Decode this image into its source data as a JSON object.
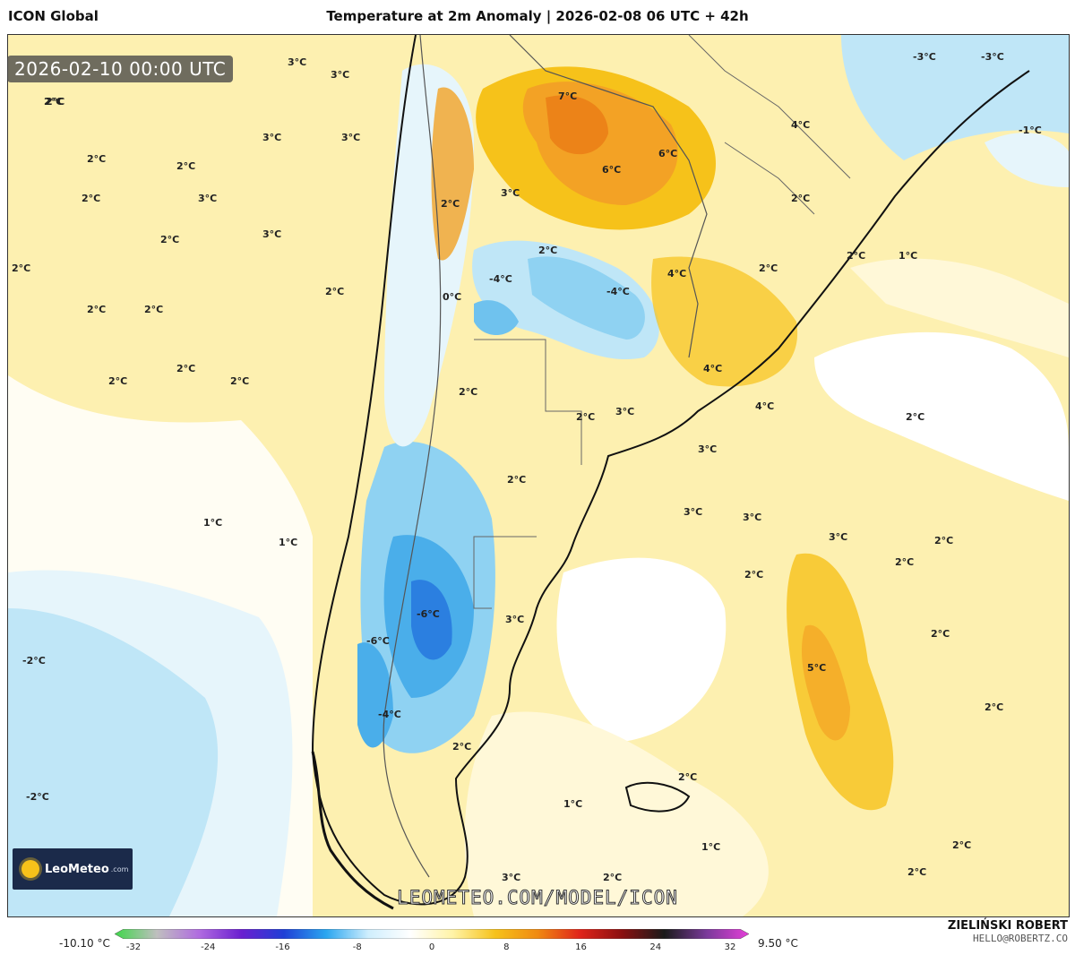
{
  "header": {
    "model": "ICON Global",
    "title": "Temperature at 2m Anomaly | 2026-02-08 06 UTC + 42h"
  },
  "timestamp": "2026-02-10 00:00 UTC",
  "watermark": "LEOMETEO.COM/MODEL/ICON",
  "logo": {
    "name": "LeoMeteo",
    "suffix": ".com"
  },
  "author": {
    "name": "ZIELIŃSKI ROBERT",
    "email": "HELLO@ROBERTZ.CO"
  },
  "legend": {
    "min_label": "-10.10 °C",
    "max_label": "9.50 °C",
    "ticks": [
      "-32",
      "-24",
      "-16",
      "-8",
      "0",
      "8",
      "16",
      "24",
      "32"
    ],
    "colors": [
      "#3fd64a",
      "#bfbfbf",
      "#b06be0",
      "#6a1fd0",
      "#1f3fd6",
      "#2aa6f0",
      "#cfeefd",
      "#ffffff",
      "#fff3a6",
      "#f6c21a",
      "#f08a12",
      "#e0241a",
      "#8a1010",
      "#1a1a1a",
      "#7a3a9a",
      "#e43fd8"
    ]
  },
  "map_labels": [
    {
      "text": "3°C"
    },
    {
      "text": "3°C"
    },
    {
      "text": "2°C"
    },
    {
      "text": "3°C"
    },
    {
      "text": "3°C"
    },
    {
      "text": "2°C"
    },
    {
      "text": "2°C"
    },
    {
      "text": "2°C"
    },
    {
      "text": "3°C"
    },
    {
      "text": "2°C"
    },
    {
      "text": "3°C"
    },
    {
      "text": "2°C"
    },
    {
      "text": "2°C"
    },
    {
      "text": "2°C"
    },
    {
      "text": "2°C"
    },
    {
      "text": "2°C"
    },
    {
      "text": "2°C"
    },
    {
      "text": "2°C"
    },
    {
      "text": "1°C"
    },
    {
      "text": "1°C"
    },
    {
      "text": "-2°C"
    },
    {
      "text": "-2°C"
    },
    {
      "text": "2°C"
    },
    {
      "text": "7°C"
    },
    {
      "text": "6°C"
    },
    {
      "text": "6°C"
    },
    {
      "text": "3°C"
    },
    {
      "text": "2°C"
    },
    {
      "text": "-4°C"
    },
    {
      "text": "0°C"
    },
    {
      "text": "2°C"
    },
    {
      "text": "-4°C"
    },
    {
      "text": "2°C"
    },
    {
      "text": "3°C"
    },
    {
      "text": "2°C"
    },
    {
      "text": "4°C"
    },
    {
      "text": "-6°C"
    },
    {
      "text": "-6°C"
    },
    {
      "text": "3°C"
    },
    {
      "text": "-4°C"
    },
    {
      "text": "2°C"
    },
    {
      "text": "-3°C"
    },
    {
      "text": "-3°C"
    },
    {
      "text": "-1°C"
    },
    {
      "text": "4°C"
    },
    {
      "text": "2°C"
    },
    {
      "text": "2°C"
    },
    {
      "text": "2°C"
    },
    {
      "text": "1°C"
    },
    {
      "text": "4°C"
    },
    {
      "text": "3°C"
    },
    {
      "text": "4°C"
    },
    {
      "text": "3°C"
    },
    {
      "text": "2°C"
    },
    {
      "text": "2°C"
    },
    {
      "text": "3°C"
    },
    {
      "text": "3°C"
    },
    {
      "text": "2°C"
    },
    {
      "text": "2°C"
    },
    {
      "text": "2°C"
    },
    {
      "text": "2°C"
    },
    {
      "text": "5°C"
    },
    {
      "text": "2°C"
    },
    {
      "text": "2°C"
    },
    {
      "text": "1°C"
    },
    {
      "text": "1°C"
    },
    {
      "text": "2°C"
    },
    {
      "text": "2°C"
    },
    {
      "text": "3°C"
    },
    {
      "text": "2°C"
    }
  ]
}
